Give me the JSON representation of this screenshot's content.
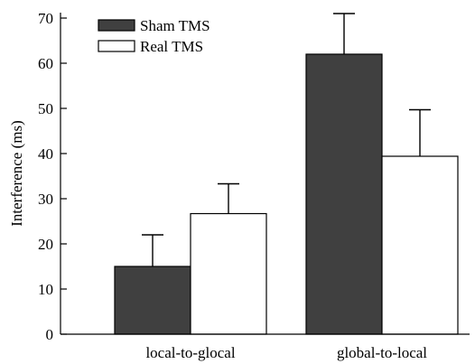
{
  "chart_data": {
    "type": "bar",
    "title": "",
    "xlabel": "",
    "ylabel": "Interference (ms)",
    "ylim": [
      0,
      70
    ],
    "yticks": [
      0,
      10,
      20,
      30,
      40,
      50,
      60,
      70
    ],
    "grid": false,
    "legend_position": "top-left",
    "categories": [
      "local-to-glocal",
      "global-to-local"
    ],
    "series": [
      {
        "name": "Sham TMS",
        "color": "#404040",
        "values": [
          15,
          62
        ],
        "errors": [
          7,
          9
        ]
      },
      {
        "name": "Real TMS",
        "color": "#ffffff",
        "values": [
          26.7,
          39.4
        ],
        "errors": [
          6.6,
          10.3
        ]
      }
    ]
  }
}
